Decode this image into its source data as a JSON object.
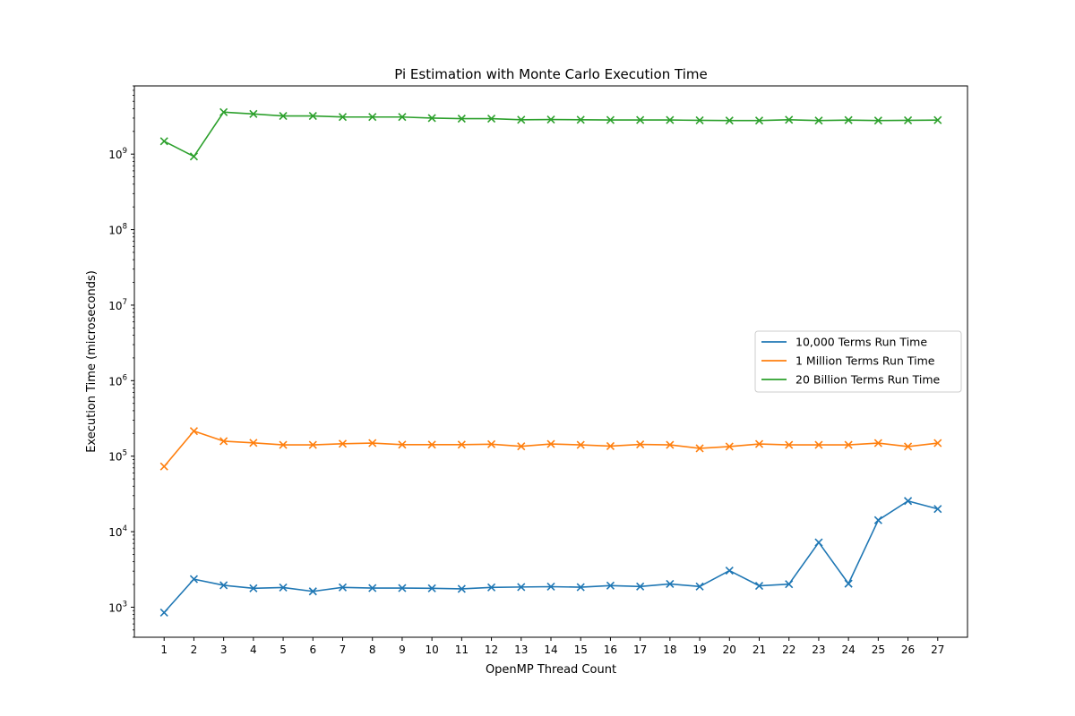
{
  "chart_data": {
    "type": "line",
    "title": "Pi Estimation with Monte Carlo Execution Time",
    "xlabel": "OpenMP Thread Count",
    "ylabel": "Execution Time (microseconds)",
    "y_scale": "log",
    "ylim": [
      400,
      8000000000
    ],
    "xlim": [
      0,
      28
    ],
    "legend_position": "center-right",
    "grid": false,
    "marker": "x",
    "x": [
      1,
      2,
      3,
      4,
      5,
      6,
      7,
      8,
      9,
      10,
      11,
      12,
      13,
      14,
      15,
      16,
      17,
      18,
      19,
      20,
      21,
      22,
      23,
      24,
      25,
      26,
      27
    ],
    "x_tick_labels": [
      "1",
      "2",
      "3",
      "4",
      "5",
      "6",
      "7",
      "8",
      "9",
      "10",
      "11",
      "12",
      "13",
      "14",
      "15",
      "16",
      "17",
      "18",
      "19",
      "20",
      "21",
      "22",
      "23",
      "24",
      "25",
      "26",
      "27"
    ],
    "y_ticks": [
      {
        "value": 1000,
        "base": "10",
        "exp": "3"
      },
      {
        "value": 10000,
        "base": "10",
        "exp": "4"
      },
      {
        "value": 100000,
        "base": "10",
        "exp": "5"
      },
      {
        "value": 1000000,
        "base": "10",
        "exp": "6"
      },
      {
        "value": 10000000,
        "base": "10",
        "exp": "7"
      },
      {
        "value": 100000000,
        "base": "10",
        "exp": "8"
      },
      {
        "value": 1000000000,
        "base": "10",
        "exp": "9"
      }
    ],
    "series": [
      {
        "name": "10,000 Terms Run Time",
        "color": "#1f77b4",
        "values": [
          850,
          2350,
          1950,
          1780,
          1820,
          1620,
          1830,
          1790,
          1790,
          1780,
          1750,
          1830,
          1850,
          1870,
          1840,
          1930,
          1880,
          2030,
          1880,
          3050,
          1920,
          2020,
          7200,
          2050,
          14200,
          25500,
          20000
        ]
      },
      {
        "name": "1 Million Terms Run Time",
        "color": "#ff7f0e",
        "values": [
          73000,
          215000,
          158000,
          150000,
          141000,
          141000,
          146000,
          149000,
          142000,
          142000,
          142000,
          144000,
          135000,
          145000,
          141000,
          136000,
          143000,
          141000,
          127000,
          134000,
          145000,
          141000,
          141000,
          141000,
          149000,
          134000,
          149000
        ]
      },
      {
        "name": "20 Billion Terms Run Time",
        "color": "#2ca02c",
        "values": [
          1480000000,
          930000000,
          3600000000,
          3400000000,
          3200000000,
          3200000000,
          3100000000,
          3100000000,
          3100000000,
          3000000000,
          2950000000,
          2950000000,
          2850000000,
          2870000000,
          2850000000,
          2830000000,
          2830000000,
          2830000000,
          2800000000,
          2780000000,
          2780000000,
          2850000000,
          2780000000,
          2820000000,
          2780000000,
          2800000000,
          2820000000
        ]
      }
    ]
  }
}
